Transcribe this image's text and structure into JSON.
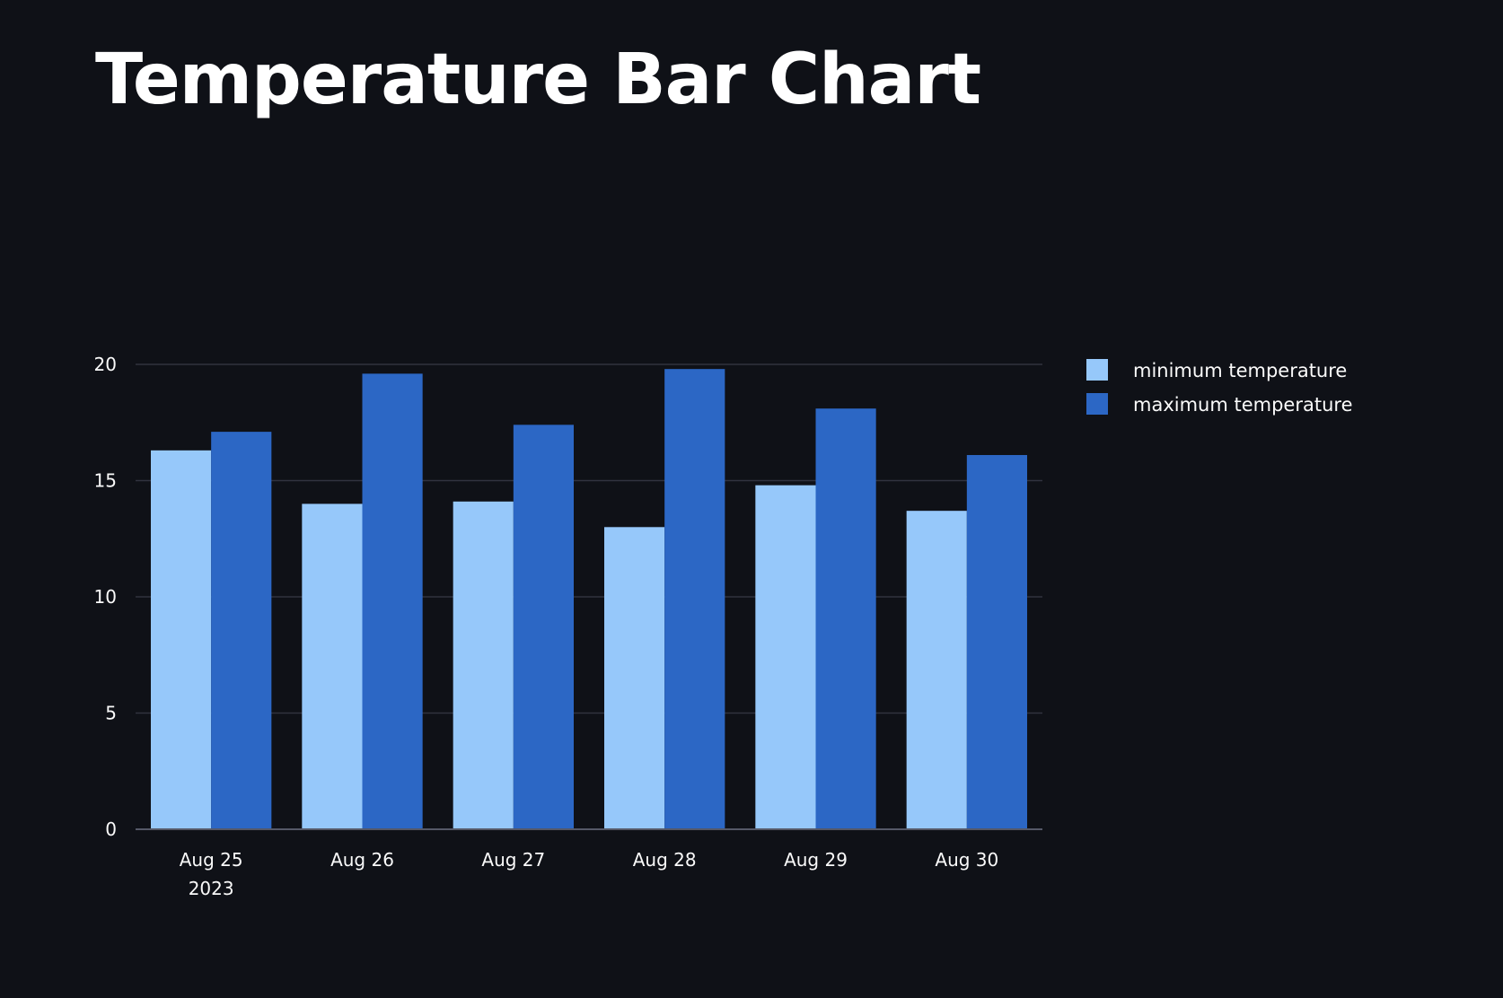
{
  "page": {
    "title": "Temperature Bar Chart"
  },
  "chart_data": {
    "type": "bar",
    "title": "",
    "xlabel": "",
    "ylabel": "",
    "categories": [
      "Aug 25",
      "Aug 26",
      "Aug 27",
      "Aug 28",
      "Aug 29",
      "Aug 30"
    ],
    "category_sublabels": [
      "2023",
      "",
      "",
      "",
      "",
      ""
    ],
    "series": [
      {
        "name": "minimum temperature",
        "color": "#96c8fa",
        "values": [
          16.3,
          14.0,
          14.1,
          13.0,
          14.8,
          13.7
        ]
      },
      {
        "name": "maximum temperature",
        "color": "#2c67c5",
        "values": [
          17.1,
          19.6,
          17.4,
          19.8,
          18.1,
          16.1
        ]
      }
    ],
    "ylim": [
      0,
      20
    ],
    "yticks": [
      0,
      5,
      10,
      15,
      20
    ],
    "grid": true,
    "legend_position": "right",
    "background_color": "#0f1117",
    "grid_color": "#31333f",
    "text_color": "#fafafa"
  }
}
